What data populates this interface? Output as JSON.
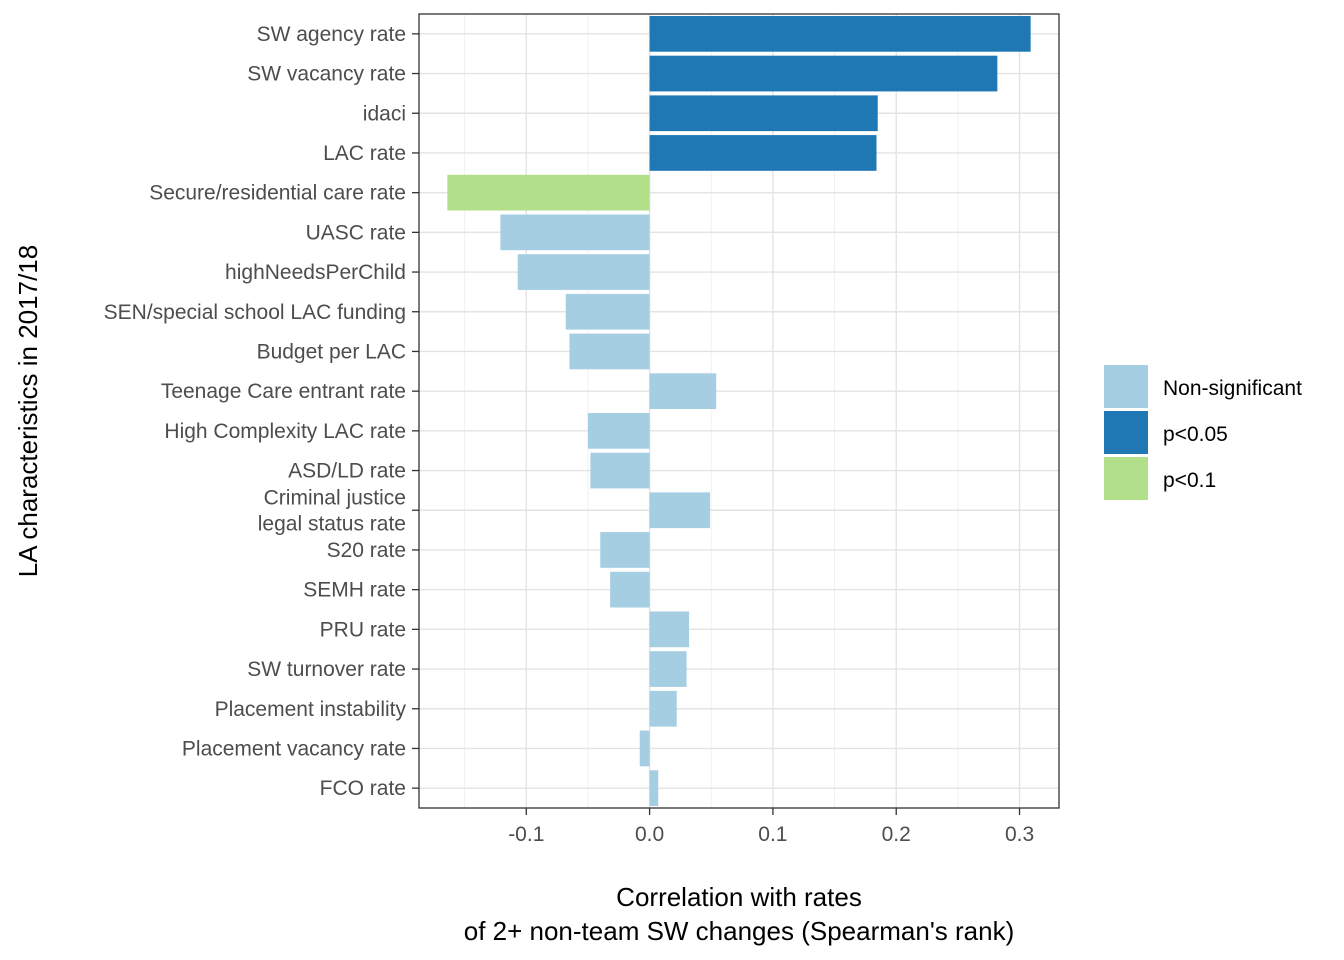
{
  "chart_data": {
    "type": "bar",
    "orientation": "horizontal",
    "title": "",
    "xlabel_lines": [
      "Correlation with rates",
      "of 2+ non-team SW changes (Spearman's rank)"
    ],
    "ylabel": "LA characteristics in 2017/18",
    "xlim": [
      -0.187,
      0.332
    ],
    "x_ticks": [
      -0.1,
      0.0,
      0.1,
      0.2,
      0.3
    ],
    "x_tick_labels": [
      "-0.1",
      "0.0",
      "0.1",
      "0.2",
      "0.3"
    ],
    "grid": true,
    "legend_position": "right",
    "categories": [
      {
        "label": [
          "SW agency rate"
        ],
        "value": 0.309,
        "group": "p<0.05"
      },
      {
        "label": [
          "SW vacancy rate"
        ],
        "value": 0.282,
        "group": "p<0.05"
      },
      {
        "label": [
          "idaci"
        ],
        "value": 0.185,
        "group": "p<0.05"
      },
      {
        "label": [
          "LAC rate"
        ],
        "value": 0.184,
        "group": "p<0.05"
      },
      {
        "label": [
          "Secure/residential care rate"
        ],
        "value": -0.164,
        "group": "p<0.1"
      },
      {
        "label": [
          "UASC rate"
        ],
        "value": -0.121,
        "group": "Non-significant"
      },
      {
        "label": [
          "highNeedsPerChild"
        ],
        "value": -0.107,
        "group": "Non-significant"
      },
      {
        "label": [
          "SEN/special school LAC funding"
        ],
        "value": -0.068,
        "group": "Non-significant"
      },
      {
        "label": [
          "Budget per LAC"
        ],
        "value": -0.065,
        "group": "Non-significant"
      },
      {
        "label": [
          "Teenage Care entrant rate"
        ],
        "value": 0.054,
        "group": "Non-significant"
      },
      {
        "label": [
          "High Complexity LAC rate"
        ],
        "value": -0.05,
        "group": "Non-significant"
      },
      {
        "label": [
          "ASD/LD rate"
        ],
        "value": -0.048,
        "group": "Non-significant"
      },
      {
        "label": [
          "Criminal justice",
          "legal status rate"
        ],
        "value": 0.049,
        "group": "Non-significant"
      },
      {
        "label": [
          "S20 rate"
        ],
        "value": -0.04,
        "group": "Non-significant"
      },
      {
        "label": [
          "SEMH rate"
        ],
        "value": -0.032,
        "group": "Non-significant"
      },
      {
        "label": [
          "PRU rate"
        ],
        "value": 0.032,
        "group": "Non-significant"
      },
      {
        "label": [
          "SW turnover rate"
        ],
        "value": 0.03,
        "group": "Non-significant"
      },
      {
        "label": [
          "Placement instability"
        ],
        "value": 0.022,
        "group": "Non-significant"
      },
      {
        "label": [
          "Placement vacancy rate"
        ],
        "value": -0.008,
        "group": "Non-significant"
      },
      {
        "label": [
          "FCO rate"
        ],
        "value": 0.007,
        "group": "Non-significant"
      }
    ],
    "legend": [
      {
        "name": "Non-significant",
        "color": "#a6cee3"
      },
      {
        "name": "p<0.05",
        "color": "#1f78b4"
      },
      {
        "name": "p<0.1",
        "color": "#b2df8a"
      }
    ]
  }
}
